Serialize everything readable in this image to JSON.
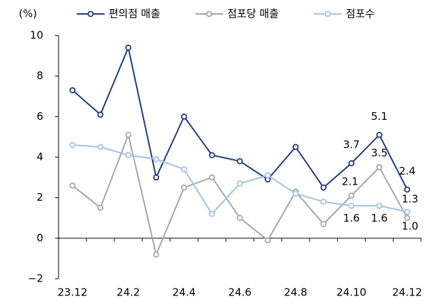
{
  "chart_data": {
    "type": "line",
    "y_label": "(%)",
    "categories": [
      "23.12",
      null,
      "24.2",
      null,
      "24.4",
      null,
      "24.6",
      null,
      "24.8",
      null,
      "24.10",
      null,
      "24.12"
    ],
    "series": [
      {
        "name": "편의점 매출",
        "color": "#1f3b7a",
        "values": [
          7.3,
          6.1,
          9.4,
          3.0,
          6.0,
          4.1,
          3.8,
          2.9,
          4.5,
          2.5,
          3.7,
          5.1,
          2.4
        ],
        "value_labels": [
          null,
          null,
          null,
          null,
          null,
          null,
          null,
          null,
          null,
          null,
          "3.7",
          "5.1",
          "2.4"
        ]
      },
      {
        "name": "점포당 매출",
        "color": "#a6a6a6",
        "values": [
          2.6,
          1.5,
          5.1,
          -0.8,
          2.5,
          3.0,
          1.0,
          -0.1,
          2.3,
          0.7,
          2.1,
          3.5,
          1.0
        ],
        "value_labels": [
          null,
          null,
          null,
          null,
          null,
          null,
          null,
          null,
          null,
          null,
          "2.1",
          "3.5",
          "1.0"
        ]
      },
      {
        "name": "점포수",
        "color": "#9dc3e6",
        "values": [
          4.6,
          4.5,
          4.1,
          3.9,
          3.4,
          1.2,
          2.7,
          3.1,
          2.2,
          1.8,
          1.6,
          1.6,
          1.3
        ],
        "value_labels": [
          null,
          null,
          null,
          null,
          null,
          null,
          null,
          null,
          null,
          null,
          "1.6",
          "1.6",
          "1.3"
        ]
      }
    ],
    "ylim": [
      -2,
      10
    ],
    "yticks": [
      {
        "value": -2,
        "label": "−2"
      },
      0,
      2,
      4,
      6,
      8,
      10
    ],
    "grid": false,
    "legend": "top"
  }
}
